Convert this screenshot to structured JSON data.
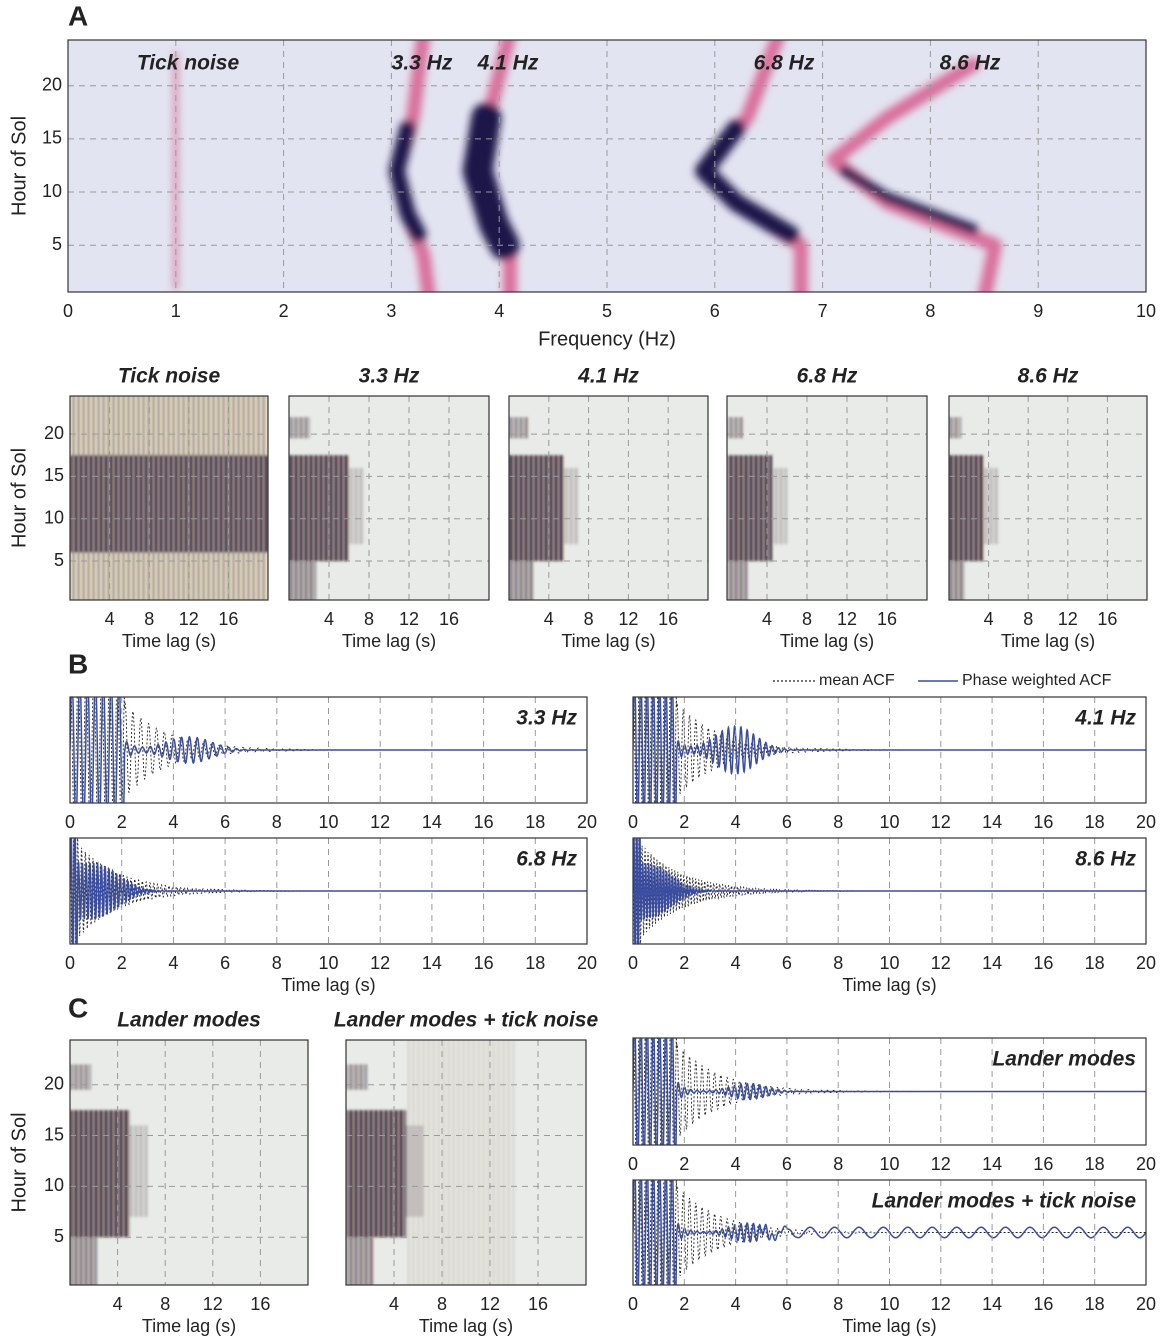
{
  "panel_labels": [
    "A",
    "B",
    "C"
  ],
  "chart_data": [
    {
      "type": "heatmap",
      "annotations": [
        "Tick noise",
        "3.3 Hz",
        "4.1 Hz",
        "6.8 Hz",
        "8.6 Hz"
      ],
      "xlabel": "Frequency (Hz)",
      "ylabel": "Hour of Sol",
      "xlim": [
        0,
        10
      ],
      "xticks": [
        0,
        1,
        2,
        3,
        4,
        5,
        6,
        7,
        8,
        9,
        10
      ],
      "ylim": [
        0.6,
        24.3
      ],
      "yticks": [
        5,
        10,
        15,
        20
      ],
      "grid": true
    },
    {
      "type": "heatmap",
      "title": "Tick noise",
      "xlabel": "Time lag (s)",
      "ylabel": "Hour of Sol",
      "xlim": [
        0,
        20
      ],
      "xticks": [
        4,
        8,
        12,
        16
      ],
      "ylim": [
        0.4,
        24.5
      ],
      "yticks": [
        5,
        10,
        15,
        20
      ],
      "grid": true
    },
    {
      "type": "heatmap",
      "title": "3.3 Hz",
      "xlabel": "Time lag (s)",
      "xlim": [
        0,
        20
      ],
      "xticks": [
        4,
        8,
        12,
        16
      ],
      "ylim": [
        0.4,
        24.5
      ],
      "yticks": [
        5,
        10,
        15,
        20
      ],
      "ytick_labels": false,
      "grid": true
    },
    {
      "type": "heatmap",
      "title": "4.1 Hz",
      "xlabel": "Time lag (s)",
      "xlim": [
        0,
        20
      ],
      "xticks": [
        4,
        8,
        12,
        16
      ],
      "ylim": [
        0.4,
        24.5
      ],
      "yticks": [
        5,
        10,
        15,
        20
      ],
      "ytick_labels": false,
      "grid": true
    },
    {
      "type": "heatmap",
      "title": "6.8 Hz",
      "xlabel": "Time lag (s)",
      "xlim": [
        0,
        20
      ],
      "xticks": [
        4,
        8,
        12,
        16
      ],
      "ylim": [
        0.4,
        24.5
      ],
      "yticks": [
        5,
        10,
        15,
        20
      ],
      "ytick_labels": false,
      "grid": true
    },
    {
      "type": "heatmap",
      "title": "8.6 Hz",
      "xlabel": "Time lag (s)",
      "xlim": [
        0,
        20
      ],
      "xticks": [
        4,
        8,
        12,
        16
      ],
      "ylim": [
        0.4,
        24.5
      ],
      "yticks": [
        5,
        10,
        15,
        20
      ],
      "ytick_labels": false,
      "grid": true
    },
    {
      "type": "line",
      "annotation": "3.3 Hz",
      "xlim": [
        0,
        20
      ],
      "xticks": [
        0,
        2,
        4,
        6,
        8,
        10,
        12,
        14,
        16,
        18,
        20
      ],
      "grid": true
    },
    {
      "type": "line",
      "annotation": "4.1 Hz",
      "xlim": [
        0,
        20
      ],
      "xticks": [
        0,
        2,
        4,
        6,
        8,
        10,
        12,
        14,
        16,
        18,
        20
      ],
      "grid": true,
      "legend": "top-right",
      "series": [
        {
          "name": "mean ACF",
          "color": "#222222"
        },
        {
          "name": "Phase weighted ACF",
          "color": "#3a4da0"
        }
      ]
    },
    {
      "type": "line",
      "annotation": "6.8 Hz",
      "xlabel": "Time lag (s)",
      "xlim": [
        0,
        20
      ],
      "xticks": [
        0,
        2,
        4,
        6,
        8,
        10,
        12,
        14,
        16,
        18,
        20
      ],
      "grid": true
    },
    {
      "type": "line",
      "annotation": "8.6 Hz",
      "xlabel": "Time lag (s)",
      "xlim": [
        0,
        20
      ],
      "xticks": [
        0,
        2,
        4,
        6,
        8,
        10,
        12,
        14,
        16,
        18,
        20
      ],
      "grid": true
    },
    {
      "type": "heatmap",
      "title": "Lander modes",
      "xlabel": "Time lag (s)",
      "ylabel": "Hour of Sol",
      "xlim": [
        0,
        20
      ],
      "xticks": [
        4,
        8,
        12,
        16
      ],
      "ylim": [
        0.3,
        24.4
      ],
      "yticks": [
        5,
        10,
        15,
        20
      ],
      "grid": true
    },
    {
      "type": "heatmap",
      "title": "Lander modes + tick noise",
      "xlabel": "Time lag (s)",
      "xlim": [
        0,
        20
      ],
      "xticks": [
        4,
        8,
        12,
        16
      ],
      "ylim": [
        0.3,
        24.4
      ],
      "yticks": [
        5,
        10,
        15,
        20
      ],
      "ytick_labels": false,
      "grid": true
    },
    {
      "type": "line",
      "annotation": "Lander modes",
      "xlim": [
        0,
        20
      ],
      "xticks": [
        0,
        2,
        4,
        6,
        8,
        10,
        12,
        14,
        16,
        18,
        20
      ],
      "grid": true
    },
    {
      "type": "line",
      "annotation": "Lander modes + tick noise",
      "xlabel": "Time lag (s)",
      "xlim": [
        0,
        20
      ],
      "xticks": [
        0,
        2,
        4,
        6,
        8,
        10,
        12,
        14,
        16,
        18,
        20
      ],
      "grid": true
    }
  ]
}
